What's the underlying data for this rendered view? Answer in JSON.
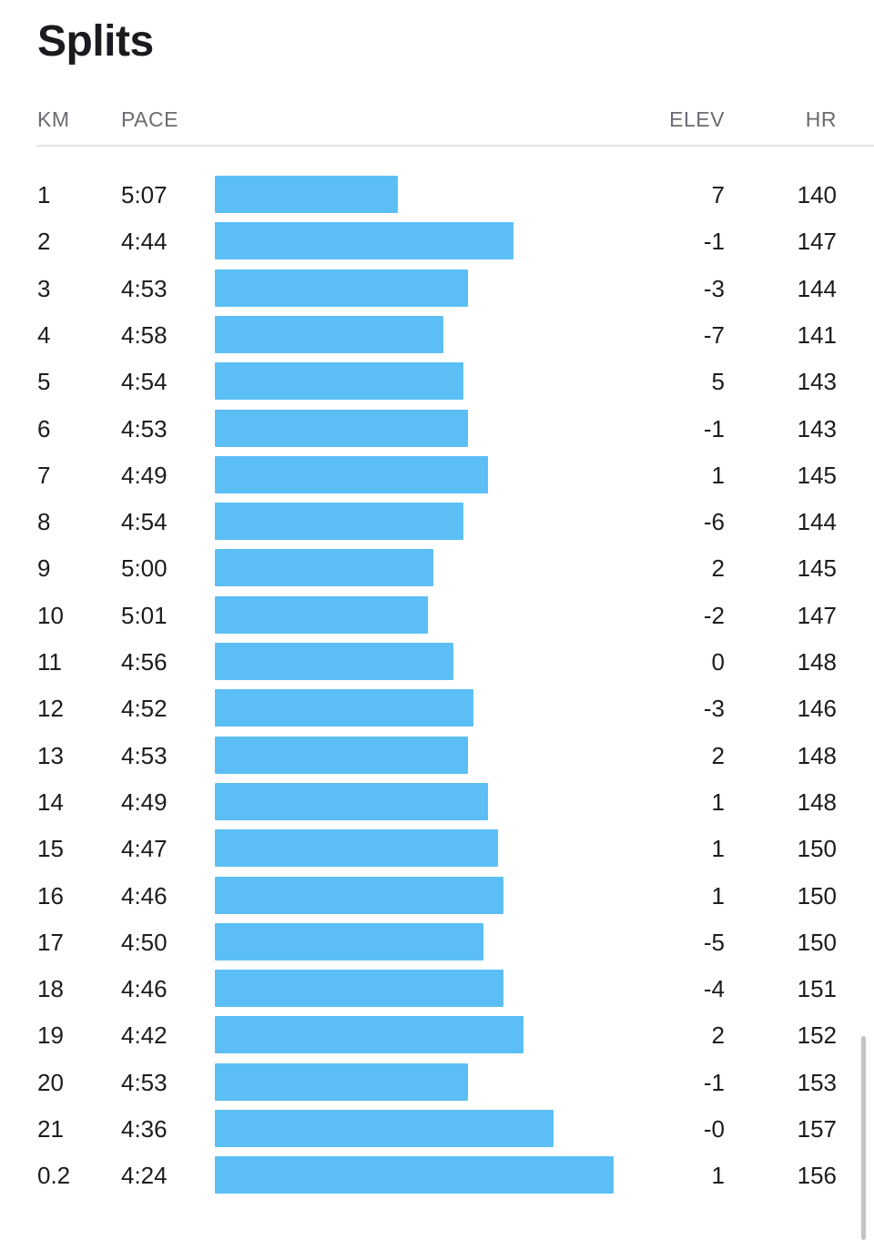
{
  "title": "Splits",
  "columns": {
    "km": "KM",
    "pace": "PACE",
    "elev": "ELEV",
    "hr": "HR"
  },
  "colors": {
    "bar": "#5bbff5",
    "text": "#1c1c1e",
    "header": "#6b6b72",
    "divider": "#e3e3e6"
  },
  "splits": [
    {
      "km": "1",
      "pace": "5:07",
      "elev": "7",
      "hr": "140",
      "pace_seconds": 307
    },
    {
      "km": "2",
      "pace": "4:44",
      "elev": "-1",
      "hr": "147",
      "pace_seconds": 284
    },
    {
      "km": "3",
      "pace": "4:53",
      "elev": "-3",
      "hr": "144",
      "pace_seconds": 293
    },
    {
      "km": "4",
      "pace": "4:58",
      "elev": "-7",
      "hr": "141",
      "pace_seconds": 298
    },
    {
      "km": "5",
      "pace": "4:54",
      "elev": "5",
      "hr": "143",
      "pace_seconds": 294
    },
    {
      "km": "6",
      "pace": "4:53",
      "elev": "-1",
      "hr": "143",
      "pace_seconds": 293
    },
    {
      "km": "7",
      "pace": "4:49",
      "elev": "1",
      "hr": "145",
      "pace_seconds": 289
    },
    {
      "km": "8",
      "pace": "4:54",
      "elev": "-6",
      "hr": "144",
      "pace_seconds": 294
    },
    {
      "km": "9",
      "pace": "5:00",
      "elev": "2",
      "hr": "145",
      "pace_seconds": 300
    },
    {
      "km": "10",
      "pace": "5:01",
      "elev": "-2",
      "hr": "147",
      "pace_seconds": 301
    },
    {
      "km": "11",
      "pace": "4:56",
      "elev": "0",
      "hr": "148",
      "pace_seconds": 296
    },
    {
      "km": "12",
      "pace": "4:52",
      "elev": "-3",
      "hr": "146",
      "pace_seconds": 292
    },
    {
      "km": "13",
      "pace": "4:53",
      "elev": "2",
      "hr": "148",
      "pace_seconds": 293
    },
    {
      "km": "14",
      "pace": "4:49",
      "elev": "1",
      "hr": "148",
      "pace_seconds": 289
    },
    {
      "km": "15",
      "pace": "4:47",
      "elev": "1",
      "hr": "150",
      "pace_seconds": 287
    },
    {
      "km": "16",
      "pace": "4:46",
      "elev": "1",
      "hr": "150",
      "pace_seconds": 286
    },
    {
      "km": "17",
      "pace": "4:50",
      "elev": "-5",
      "hr": "150",
      "pace_seconds": 290
    },
    {
      "km": "18",
      "pace": "4:46",
      "elev": "-4",
      "hr": "151",
      "pace_seconds": 286
    },
    {
      "km": "19",
      "pace": "4:42",
      "elev": "2",
      "hr": "152",
      "pace_seconds": 282
    },
    {
      "km": "20",
      "pace": "4:53",
      "elev": "-1",
      "hr": "153",
      "pace_seconds": 293
    },
    {
      "km": "21",
      "pace": "4:36",
      "elev": "-0",
      "hr": "157",
      "pace_seconds": 276
    },
    {
      "km": "0.2",
      "pace": "4:24",
      "elev": "1",
      "hr": "156",
      "pace_seconds": 264
    }
  ]
}
